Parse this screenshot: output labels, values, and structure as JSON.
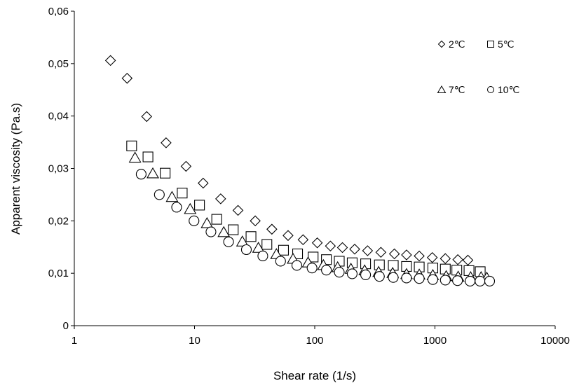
{
  "chart_data": {
    "type": "scatter",
    "title": "",
    "xlabel": "Shear rate (1/s)",
    "ylabel": "Apparent viscosity (Pa.s)",
    "x_scale": "log",
    "xlim": [
      1,
      10000
    ],
    "ylim": [
      0,
      0.06
    ],
    "x_ticks": [
      1,
      10,
      100,
      1000,
      10000
    ],
    "x_tick_labels": [
      "1",
      "10",
      "100",
      "1000",
      "10000"
    ],
    "y_ticks": [
      0,
      0.01,
      0.02,
      0.03,
      0.04,
      0.05,
      0.06
    ],
    "y_tick_labels": [
      "0",
      "0,01",
      "0,02",
      "0,03",
      "0,04",
      "0,05",
      "0,06"
    ],
    "grid": false,
    "legend_position": "top-right",
    "series": [
      {
        "name": "2℃",
        "marker": "diamond",
        "points": [
          [
            2.0,
            0.0506
          ],
          [
            2.75,
            0.0472
          ],
          [
            4.0,
            0.0399
          ],
          [
            5.8,
            0.0349
          ],
          [
            8.5,
            0.0304
          ],
          [
            11.8,
            0.0272
          ],
          [
            16.5,
            0.0242
          ],
          [
            23.0,
            0.022
          ],
          [
            32.0,
            0.02
          ],
          [
            44.0,
            0.0184
          ],
          [
            60.0,
            0.0172
          ],
          [
            80.0,
            0.0164
          ],
          [
            105.0,
            0.0158
          ],
          [
            135.0,
            0.0152
          ],
          [
            170.0,
            0.0149
          ],
          [
            215.0,
            0.0146
          ],
          [
            275.0,
            0.0143
          ],
          [
            355.0,
            0.014
          ],
          [
            460.0,
            0.0137
          ],
          [
            580.0,
            0.0135
          ],
          [
            740.0,
            0.0133
          ],
          [
            950.0,
            0.013
          ],
          [
            1220.0,
            0.0128
          ],
          [
            1550.0,
            0.0126
          ],
          [
            1880.0,
            0.0125
          ]
        ]
      },
      {
        "name": "5℃",
        "marker": "square",
        "points": [
          [
            3.0,
            0.0343
          ],
          [
            4.1,
            0.0322
          ],
          [
            5.7,
            0.0291
          ],
          [
            7.9,
            0.0253
          ],
          [
            11.0,
            0.023
          ],
          [
            15.3,
            0.0203
          ],
          [
            21.0,
            0.0183
          ],
          [
            29.5,
            0.017
          ],
          [
            40.0,
            0.0155
          ],
          [
            55.0,
            0.0144
          ],
          [
            72.0,
            0.0137
          ],
          [
            97.0,
            0.0131
          ],
          [
            125.0,
            0.0126
          ],
          [
            160.0,
            0.0123
          ],
          [
            205.0,
            0.012
          ],
          [
            265.0,
            0.0118
          ],
          [
            345.0,
            0.0116
          ],
          [
            450.0,
            0.0115
          ],
          [
            580.0,
            0.0113
          ],
          [
            740.0,
            0.0112
          ],
          [
            960.0,
            0.011
          ],
          [
            1220.0,
            0.0108
          ],
          [
            1520.0,
            0.0106
          ],
          [
            1920.0,
            0.0105
          ],
          [
            2380.0,
            0.0103
          ]
        ]
      },
      {
        "name": "7℃",
        "marker": "triangle",
        "points": [
          [
            3.2,
            0.032
          ],
          [
            4.5,
            0.029
          ],
          [
            6.5,
            0.0245
          ],
          [
            9.2,
            0.0222
          ],
          [
            12.7,
            0.0195
          ],
          [
            17.5,
            0.0178
          ],
          [
            25.0,
            0.016
          ],
          [
            34.0,
            0.0148
          ],
          [
            48.0,
            0.0136
          ],
          [
            66.0,
            0.0127
          ],
          [
            88.0,
            0.012
          ],
          [
            118.0,
            0.0115
          ],
          [
            155.0,
            0.0111
          ],
          [
            200.0,
            0.0108
          ],
          [
            260.0,
            0.0105
          ],
          [
            340.0,
            0.0102
          ],
          [
            445.0,
            0.01
          ],
          [
            580.0,
            0.0098
          ],
          [
            740.0,
            0.0097
          ],
          [
            960.0,
            0.0096
          ],
          [
            1240.0,
            0.0094
          ],
          [
            1560.0,
            0.0093
          ],
          [
            1980.0,
            0.0092
          ],
          [
            2420.0,
            0.0092
          ],
          [
            2700.0,
            0.0091
          ]
        ]
      },
      {
        "name": "10℃",
        "marker": "circle",
        "points": [
          [
            3.6,
            0.0289
          ],
          [
            5.1,
            0.025
          ],
          [
            7.1,
            0.0226
          ],
          [
            9.9,
            0.02
          ],
          [
            13.7,
            0.0179
          ],
          [
            19.2,
            0.016
          ],
          [
            27.0,
            0.0145
          ],
          [
            37.0,
            0.0133
          ],
          [
            52.0,
            0.0123
          ],
          [
            71.0,
            0.0115
          ],
          [
            95.0,
            0.011
          ],
          [
            125.0,
            0.0106
          ],
          [
            160.0,
            0.0102
          ],
          [
            205.0,
            0.0099
          ],
          [
            265.0,
            0.0097
          ],
          [
            345.0,
            0.0094
          ],
          [
            450.0,
            0.0092
          ],
          [
            580.0,
            0.0091
          ],
          [
            740.0,
            0.009
          ],
          [
            960.0,
            0.0088
          ],
          [
            1220.0,
            0.0087
          ],
          [
            1540.0,
            0.0086
          ],
          [
            1960.0,
            0.0085
          ],
          [
            2370.0,
            0.0085
          ],
          [
            2850.0,
            0.0085
          ]
        ]
      }
    ]
  }
}
